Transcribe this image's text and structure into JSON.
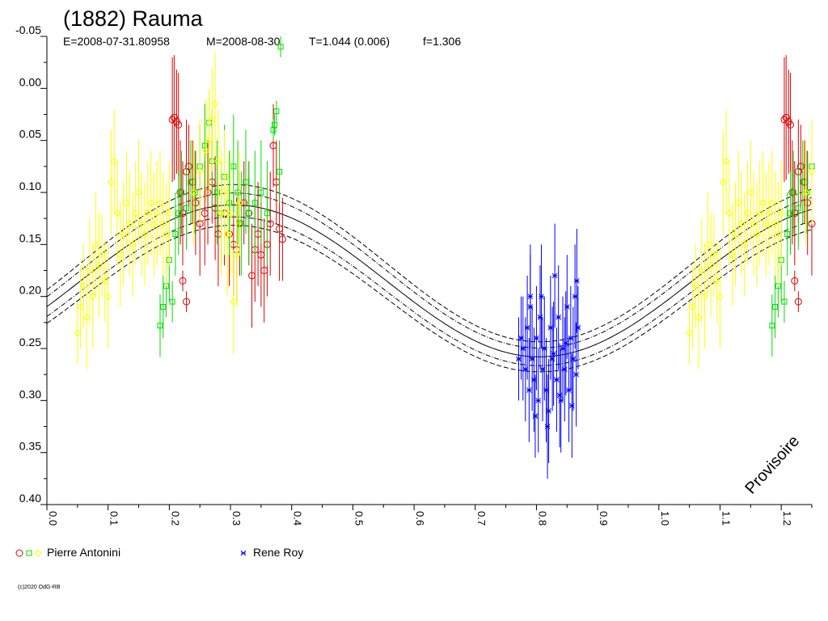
{
  "header": {
    "title": "(1882) Rauma",
    "epoch": "E=2008-07-31.80958",
    "mean_date": "M=2008-08-30",
    "period": "T=1.044 (0.006)",
    "fourier": "f=1.306"
  },
  "watermark": "Provisoire",
  "copyright": "(c)2020 OdG-RB",
  "colors": {
    "antonini_red": "#dd0000",
    "antonini_green": "#00dd00",
    "antonini_yellow": "#ffff00",
    "roy_blue": "#0000ff",
    "fit_curve": "#000000"
  },
  "chart_data": {
    "type": "scatter",
    "title": "(1882) Rauma",
    "xlim": [
      0.0,
      1.25
    ],
    "ylim": [
      -0.05,
      0.4
    ],
    "y_inverted": true,
    "x_ticks": [
      "0.0",
      "0.1",
      "0.2",
      "0.3",
      "0.4",
      "0.5",
      "0.6",
      "0.7",
      "0.8",
      "0.9",
      "1.0",
      "1.1",
      "1.2"
    ],
    "y_ticks": [
      "-0.05",
      "0.00",
      "0.05",
      "0.10",
      "0.15",
      "0.20",
      "0.25",
      "0.30",
      "0.35",
      "0.40"
    ],
    "legend": [
      {
        "label": "Pierre Antonini",
        "markers": [
          "circle-red",
          "square-green",
          "diamond-yellow"
        ]
      },
      {
        "label": "Rene Roy",
        "markers": [
          "star-blue"
        ]
      }
    ],
    "fit": {
      "mean": 0.185,
      "amplitude": 0.073,
      "peak_phase": 0.305,
      "inner_band": 0.01,
      "outer_band": 0.017
    },
    "series": [
      {
        "name": "Pierre Antonini",
        "marker": "circle",
        "color": "#dd0000",
        "x": [
          0.205,
          0.208,
          0.212,
          0.215,
          0.218,
          0.222,
          0.228,
          0.232,
          0.238,
          0.243,
          0.25,
          0.258,
          0.263,
          0.27,
          0.275,
          0.28,
          0.29,
          0.298,
          0.305,
          0.31,
          0.315,
          0.322,
          0.33,
          0.335,
          0.34,
          0.345,
          0.35,
          0.355,
          0.36,
          0.365,
          0.37,
          0.375,
          0.38,
          0.385,
          0.222,
          0.228
        ],
        "y": [
          0.03,
          0.028,
          0.032,
          0.035,
          0.1,
          0.12,
          0.08,
          0.075,
          0.09,
          0.11,
          0.13,
          0.12,
          0.1,
          0.09,
          0.115,
          0.14,
          0.12,
          0.14,
          0.15,
          0.155,
          0.13,
          0.11,
          0.12,
          0.18,
          0.155,
          0.14,
          0.16,
          0.175,
          0.15,
          0.13,
          0.055,
          0.09,
          0.135,
          0.145,
          0.185,
          0.205
        ],
        "err": [
          0.06,
          0.06,
          0.05,
          0.05,
          0.05,
          0.05,
          0.05,
          0.04,
          0.04,
          0.05,
          0.05,
          0.05,
          0.05,
          0.04,
          0.05,
          0.05,
          0.05,
          0.05,
          0.05,
          0.05,
          0.05,
          0.04,
          0.05,
          0.05,
          0.05,
          0.05,
          0.05,
          0.05,
          0.05,
          0.05,
          0.04,
          0.04,
          0.05,
          0.04,
          0.01,
          0.01
        ]
      },
      {
        "name": "Pierre Antonini",
        "marker": "square",
        "color": "#00dd00",
        "x": [
          0.185,
          0.19,
          0.195,
          0.2,
          0.205,
          0.21,
          0.215,
          0.22,
          0.228,
          0.235,
          0.242,
          0.25,
          0.258,
          0.265,
          0.27,
          0.278,
          0.285,
          0.29,
          0.298,
          0.305,
          0.312,
          0.318,
          0.325,
          0.33,
          0.34,
          0.35,
          0.36,
          0.37,
          0.372,
          0.375,
          0.38,
          0.382
        ],
        "y": [
          0.228,
          0.21,
          0.19,
          0.165,
          0.205,
          0.14,
          0.12,
          0.1,
          0.115,
          0.09,
          0.1,
          0.075,
          0.055,
          0.033,
          0.07,
          0.1,
          0.12,
          0.085,
          0.11,
          0.075,
          0.1,
          0.13,
          0.09,
          0.12,
          0.11,
          0.1,
          0.12,
          0.04,
          0.035,
          0.022,
          0.08,
          -0.04
        ],
        "err": [
          0.03,
          0.03,
          0.03,
          0.04,
          0.02,
          0.04,
          0.04,
          0.04,
          0.04,
          0.04,
          0.04,
          0.04,
          0.04,
          0.03,
          0.05,
          0.05,
          0.05,
          0.05,
          0.05,
          0.05,
          0.05,
          0.05,
          0.05,
          0.05,
          0.05,
          0.05,
          0.05,
          0.01,
          0.01,
          0.01,
          0.03,
          0.01
        ]
      },
      {
        "name": "Pierre Antonini",
        "marker": "diamond",
        "color": "#ffff00",
        "x": [
          0.05,
          0.055,
          0.06,
          0.065,
          0.07,
          0.075,
          0.08,
          0.085,
          0.09,
          0.095,
          0.1,
          0.105,
          0.11,
          0.115,
          0.12,
          0.125,
          0.13,
          0.135,
          0.14,
          0.145,
          0.15,
          0.155,
          0.16,
          0.165,
          0.17,
          0.175,
          0.18,
          0.185,
          0.19,
          0.195,
          0.2,
          0.24,
          0.25,
          0.26,
          0.265,
          0.27,
          0.275,
          0.28,
          0.285,
          0.29,
          0.295,
          0.3,
          0.305,
          0.31,
          0.315
        ],
        "y": [
          0.235,
          0.21,
          0.19,
          0.22,
          0.175,
          0.2,
          0.15,
          0.17,
          0.16,
          0.185,
          0.2,
          0.09,
          0.07,
          0.12,
          0.16,
          0.14,
          0.11,
          0.13,
          0.15,
          0.12,
          0.1,
          0.13,
          0.14,
          0.12,
          0.11,
          0.13,
          0.12,
          0.11,
          0.13,
          0.14,
          0.12,
          0.1,
          0.08,
          0.06,
          0.05,
          0.03,
          0.015,
          0.07,
          0.12,
          0.1,
          0.14,
          0.12,
          0.205,
          0.16,
          0.11
        ],
        "err": [
          0.03,
          0.04,
          0.04,
          0.05,
          0.05,
          0.05,
          0.05,
          0.05,
          0.04,
          0.04,
          0.05,
          0.05,
          0.05,
          0.05,
          0.05,
          0.05,
          0.05,
          0.05,
          0.05,
          0.05,
          0.05,
          0.05,
          0.05,
          0.05,
          0.05,
          0.05,
          0.05,
          0.05,
          0.05,
          0.05,
          0.05,
          0.05,
          0.05,
          0.05,
          0.05,
          0.05,
          0.05,
          0.05,
          0.06,
          0.06,
          0.06,
          0.06,
          0.05,
          0.05,
          0.05
        ]
      },
      {
        "name": "Rene Roy",
        "marker": "star",
        "color": "#0000ff",
        "x": [
          0.775,
          0.778,
          0.782,
          0.785,
          0.788,
          0.79,
          0.793,
          0.796,
          0.8,
          0.803,
          0.806,
          0.81,
          0.813,
          0.816,
          0.82,
          0.823,
          0.826,
          0.83,
          0.833,
          0.836,
          0.84,
          0.843,
          0.846,
          0.85,
          0.853,
          0.856,
          0.86,
          0.863,
          0.866,
          0.868,
          0.771,
          0.798,
          0.818,
          0.838,
          0.858,
          0.808,
          0.828,
          0.848,
          0.865,
          0.79
        ],
        "y": [
          0.24,
          0.25,
          0.27,
          0.23,
          0.29,
          0.21,
          0.26,
          0.28,
          0.24,
          0.3,
          0.22,
          0.27,
          0.25,
          0.29,
          0.31,
          0.23,
          0.26,
          0.18,
          0.28,
          0.22,
          0.3,
          0.25,
          0.27,
          0.21,
          0.29,
          0.24,
          0.26,
          0.2,
          0.185,
          0.23,
          0.26,
          0.315,
          0.325,
          0.295,
          0.305,
          0.2,
          0.255,
          0.245,
          0.275,
          0.2
        ],
        "err": [
          0.04,
          0.05,
          0.05,
          0.05,
          0.05,
          0.05,
          0.05,
          0.05,
          0.05,
          0.05,
          0.05,
          0.05,
          0.05,
          0.05,
          0.05,
          0.05,
          0.05,
          0.05,
          0.05,
          0.05,
          0.05,
          0.05,
          0.05,
          0.05,
          0.05,
          0.05,
          0.05,
          0.05,
          0.05,
          0.04,
          0.04,
          0.04,
          0.05,
          0.05,
          0.05,
          0.05,
          0.05,
          0.05,
          0.05,
          0.05
        ]
      }
    ]
  }
}
